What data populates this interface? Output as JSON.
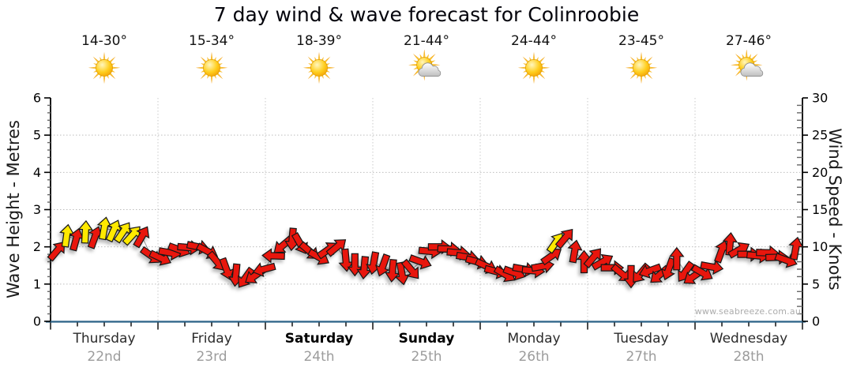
{
  "title": "7 day wind & wave forecast for Colinroobie",
  "watermark": "www.seabreeze.com.au",
  "axes": {
    "left": {
      "title": "Wave Height - Metres",
      "ticks": [
        0,
        1,
        2,
        3,
        4,
        5,
        6
      ],
      "max": 6
    },
    "right": {
      "title": "Wind Speed - Knots",
      "ticks": [
        0,
        5,
        10,
        15,
        20,
        25,
        30
      ],
      "max": 30
    }
  },
  "days": [
    {
      "name": "Thursday",
      "date": "22nd",
      "temp": "14-30°",
      "icon": "sunny",
      "weekend": false
    },
    {
      "name": "Friday",
      "date": "23rd",
      "temp": "15-34°",
      "icon": "sunny",
      "weekend": false
    },
    {
      "name": "Saturday",
      "date": "24th",
      "temp": "18-39°",
      "icon": "sunny",
      "weekend": true
    },
    {
      "name": "Sunday",
      "date": "25th",
      "temp": "21-44°",
      "icon": "partly-cloudy",
      "weekend": true
    },
    {
      "name": "Monday",
      "date": "26th",
      "temp": "24-44°",
      "icon": "sunny",
      "weekend": false
    },
    {
      "name": "Tuesday",
      "date": "27th",
      "temp": "23-45°",
      "icon": "sunny",
      "weekend": false
    },
    {
      "name": "Wednesday",
      "date": "28th",
      "temp": "27-46°",
      "icon": "partly-cloudy",
      "weekend": false
    }
  ],
  "colors": {
    "arrow_red": "#E8130C",
    "arrow_yellow": "#FFE905",
    "axis_bottom": "#2A6187",
    "axis_line": "#000000",
    "grid": "#BDBDBD",
    "grid_vertical": "#C9C9C9",
    "date_gray": "#9C9C9C",
    "watermark_gray": "#ACACAC"
  },
  "chart_data": {
    "type": "scatter",
    "title": "7 day wind & wave forecast for Colinroobie",
    "x": {
      "label": "Day",
      "units": "hours from Thursday 00:00",
      "range": [
        0,
        168
      ],
      "day_boundaries_hours": [
        24,
        48,
        72,
        96,
        120,
        144
      ],
      "minor_tick_hours": 6,
      "categories": [
        "Thursday",
        "Friday",
        "Saturday",
        "Sunday",
        "Monday",
        "Tuesday",
        "Wednesday"
      ]
    },
    "y_left": {
      "label": "Wave Height - Metres",
      "range": [
        0,
        6
      ],
      "major": 1,
      "minor": 0.2,
      "gridlines": [
        1,
        2,
        3,
        4,
        5
      ]
    },
    "y_right": {
      "label": "Wind Speed - Knots",
      "range": [
        0,
        30
      ],
      "major": 5,
      "minor": 1,
      "gridlines": [
        5,
        10,
        15,
        20,
        25
      ]
    },
    "grid": "dotted",
    "legend": "none",
    "series": [
      {
        "name": "Wind speed and direction",
        "marker": "direction-arrow",
        "point_format": [
          "hours",
          "knots",
          "arrow_direction_deg_cw_from_up",
          "color_index_0red_1yellow"
        ],
        "colors": [
          "#E8130C",
          "#FFE905"
        ],
        "points": [
          [
            1.5,
            9.5,
            40,
            0
          ],
          [
            3.6,
            11.5,
            8,
            1
          ],
          [
            5.7,
            11,
            15,
            0
          ],
          [
            7.8,
            12,
            3,
            1
          ],
          [
            9.9,
            11.3,
            20,
            0
          ],
          [
            12,
            12.5,
            10,
            1
          ],
          [
            14.1,
            12.2,
            24,
            1
          ],
          [
            16.2,
            12,
            34,
            1
          ],
          [
            18.3,
            11.6,
            42,
            1
          ],
          [
            20.4,
            11.4,
            30,
            0
          ],
          [
            22.5,
            8.8,
            125,
            0
          ],
          [
            24.6,
            8.5,
            115,
            0
          ],
          [
            26.7,
            9.2,
            100,
            0
          ],
          [
            28.8,
            9.6,
            110,
            0
          ],
          [
            30.9,
            9.9,
            95,
            0
          ],
          [
            33,
            10,
            102,
            0
          ],
          [
            35.1,
            9.4,
            118,
            0
          ],
          [
            37.2,
            8,
            140,
            0
          ],
          [
            39.3,
            7,
            160,
            0
          ],
          [
            41.4,
            6.2,
            185,
            0
          ],
          [
            43.5,
            5.8,
            215,
            0
          ],
          [
            45.6,
            6.1,
            235,
            0
          ],
          [
            47.7,
            7,
            255,
            0
          ],
          [
            49.8,
            8.8,
            272,
            0
          ],
          [
            51.9,
            10.2,
            230,
            0
          ],
          [
            54,
            11,
            185,
            0
          ],
          [
            55.8,
            10.4,
            150,
            0
          ],
          [
            57.9,
            9.4,
            130,
            0
          ],
          [
            60,
            8.6,
            120,
            0
          ],
          [
            62,
            9.6,
            55,
            0
          ],
          [
            64,
            10,
            50,
            0
          ],
          [
            66,
            8.2,
            175,
            0
          ],
          [
            68,
            7.6,
            180,
            0
          ],
          [
            70.1,
            7.2,
            185,
            0
          ],
          [
            72.2,
            7.8,
            190,
            0
          ],
          [
            74.3,
            7.5,
            200,
            0
          ],
          [
            76.4,
            6.8,
            185,
            0
          ],
          [
            78.5,
            6.4,
            170,
            0
          ],
          [
            80.6,
            6.9,
            140,
            0
          ],
          [
            82.7,
            8,
            110,
            0
          ],
          [
            84.8,
            9.4,
            95,
            0
          ],
          [
            86.9,
            10,
            90,
            0
          ],
          [
            89,
            9.7,
            92,
            0
          ],
          [
            91.1,
            9.2,
            95,
            0
          ],
          [
            93.2,
            8.6,
            100,
            0
          ],
          [
            95.3,
            8,
            105,
            0
          ],
          [
            97.4,
            7.4,
            115,
            0
          ],
          [
            99.5,
            6.7,
            105,
            0
          ],
          [
            101.6,
            6.3,
            120,
            0
          ],
          [
            103.7,
            6.5,
            110,
            0
          ],
          [
            105.8,
            7,
            100,
            0
          ],
          [
            107.9,
            6.8,
            95,
            0
          ],
          [
            110,
            7.4,
            80,
            0
          ],
          [
            112,
            8.8,
            55,
            0
          ],
          [
            112.9,
            10.6,
            35,
            1
          ],
          [
            115,
            11.2,
            40,
            0
          ],
          [
            117.1,
            9.4,
            10,
            0
          ],
          [
            119.2,
            8,
            0,
            0
          ],
          [
            121.3,
            8.6,
            40,
            0
          ],
          [
            123.4,
            8,
            60,
            0
          ],
          [
            125.5,
            7.2,
            90,
            0
          ],
          [
            127.6,
            6.4,
            130,
            0
          ],
          [
            129.7,
            6,
            180,
            0
          ],
          [
            131.8,
            6.4,
            220,
            0
          ],
          [
            133.9,
            6.8,
            250,
            0
          ],
          [
            136,
            6.2,
            230,
            0
          ],
          [
            138.1,
            7,
            200,
            0
          ],
          [
            139.9,
            8.4,
            0,
            0
          ],
          [
            141.8,
            6.6,
            215,
            0
          ],
          [
            143.6,
            6,
            235,
            0
          ],
          [
            145.7,
            6.5,
            120,
            0
          ],
          [
            147.8,
            7.3,
            100,
            0
          ],
          [
            149.9,
            9.4,
            20,
            0
          ],
          [
            151.8,
            10.4,
            5,
            0
          ],
          [
            153.9,
            9.6,
            60,
            0
          ],
          [
            156,
            9,
            90,
            0
          ],
          [
            158.1,
            8.8,
            95,
            0
          ],
          [
            160.2,
            9.2,
            92,
            0
          ],
          [
            162.3,
            8.6,
            88,
            0
          ],
          [
            164.4,
            8.2,
            110,
            0
          ],
          [
            166.5,
            9.8,
            10,
            0
          ]
        ]
      }
    ]
  }
}
